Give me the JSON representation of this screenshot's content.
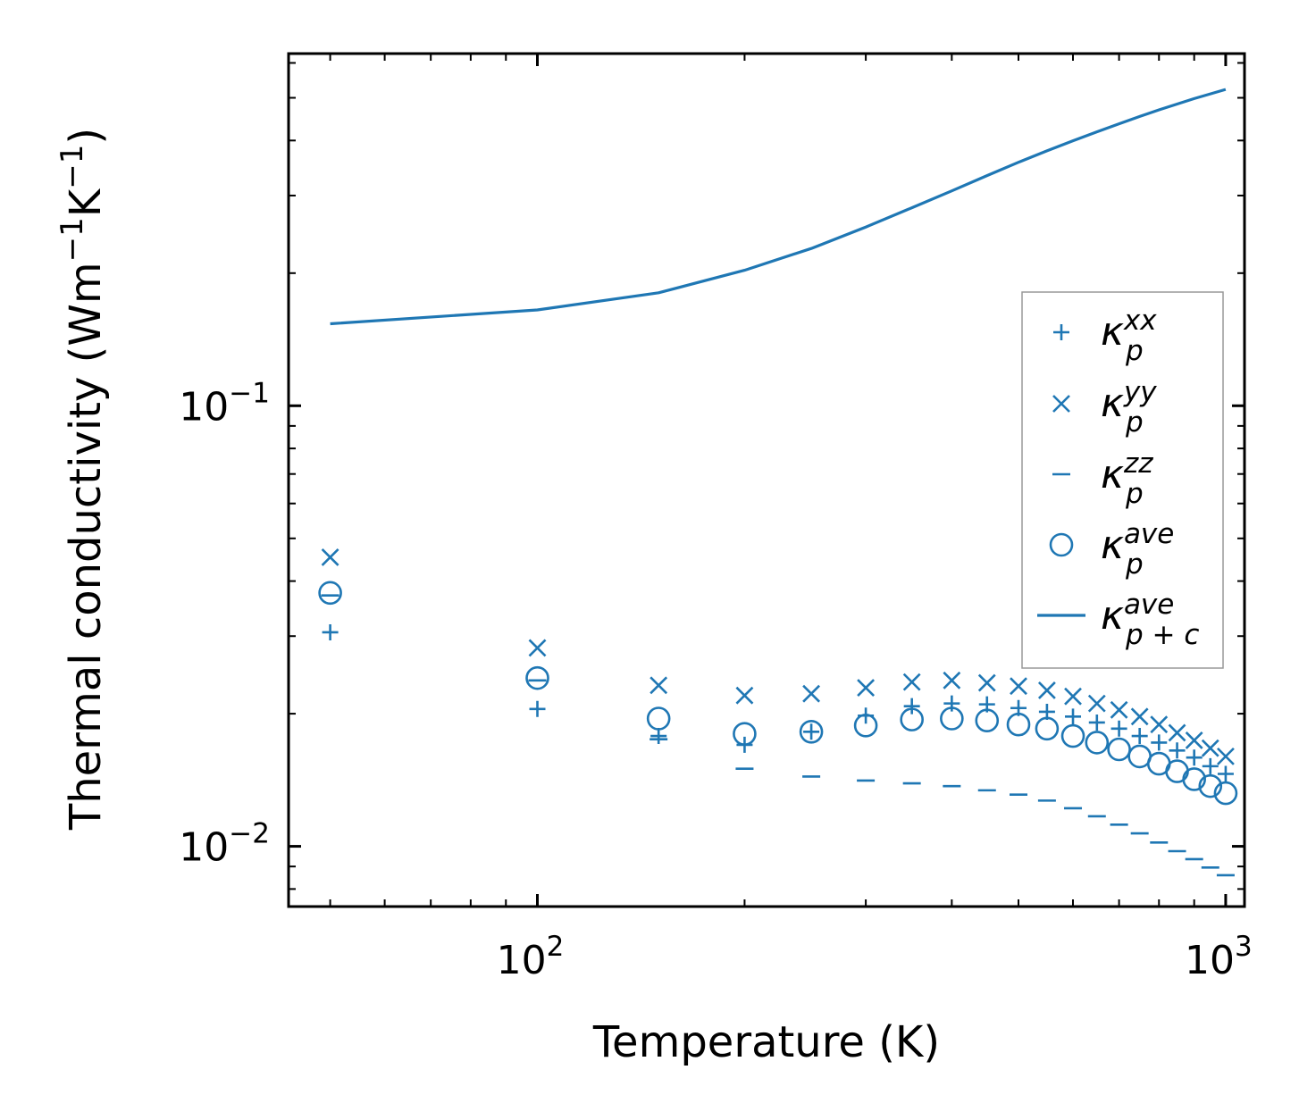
{
  "chart_data": {
    "type": "scatter",
    "title": "",
    "xlabel": "Temperature (K)",
    "ylabel": {
      "prefix": "Thermal conductivity (Wm",
      "exp1": "−1",
      "mid": "K",
      "exp2": "−1",
      "suffix": ")"
    },
    "xscale": "log",
    "yscale": "log",
    "xlim": [
      43.5,
      1065
    ],
    "ylim": [
      0.0073,
      0.63
    ],
    "x_ticks": [
      {
        "value": 100,
        "base": "10",
        "exp": "2"
      },
      {
        "value": 1000,
        "base": "10",
        "exp": "3"
      }
    ],
    "y_ticks": [
      {
        "value": 0.01,
        "base": "10",
        "exp": "−2"
      },
      {
        "value": 0.1,
        "base": "10",
        "exp": "−1"
      }
    ],
    "grid": false,
    "legend_position": "center-right",
    "color": "#1f77b4",
    "x": [
      50,
      100,
      150,
      200,
      250,
      300,
      350,
      400,
      450,
      500,
      550,
      600,
      650,
      700,
      750,
      800,
      850,
      900,
      950,
      1000
    ],
    "series": [
      {
        "name": "kappa_p^xx",
        "label": {
          "base": "κ",
          "sub": "p",
          "sup": "xx"
        },
        "marker": "plus",
        "values": [
          0.0306,
          0.0205,
          0.0178,
          0.017,
          0.0182,
          0.0198,
          0.0208,
          0.0211,
          0.021,
          0.0206,
          0.0202,
          0.0197,
          0.0191,
          0.0185,
          0.0178,
          0.0172,
          0.0165,
          0.0159,
          0.0152,
          0.0146
        ]
      },
      {
        "name": "kappa_p^yy",
        "label": {
          "base": "κ",
          "sub": "p",
          "sup": "yy"
        },
        "marker": "x",
        "values": [
          0.0453,
          0.0282,
          0.0232,
          0.022,
          0.0222,
          0.0229,
          0.0236,
          0.0238,
          0.0235,
          0.0231,
          0.0226,
          0.0219,
          0.0211,
          0.0204,
          0.0197,
          0.0189,
          0.0181,
          0.0174,
          0.0167,
          0.016
        ]
      },
      {
        "name": "kappa_p^zz",
        "label": {
          "base": "κ",
          "sub": "p",
          "sup": "zz"
        },
        "marker": "hline",
        "values": [
          0.0371,
          0.0238,
          0.0175,
          0.015,
          0.0144,
          0.0141,
          0.0139,
          0.0137,
          0.0134,
          0.0131,
          0.0127,
          0.0122,
          0.0117,
          0.0112,
          0.0107,
          0.0102,
          0.00975,
          0.00935,
          0.00895,
          0.0086
        ]
      },
      {
        "name": "kappa_p^ave",
        "label": {
          "base": "κ",
          "sub": "p",
          "sup": "ave"
        },
        "marker": "circle",
        "values": [
          0.0376,
          0.0241,
          0.0195,
          0.018,
          0.0182,
          0.0188,
          0.0194,
          0.0195,
          0.0193,
          0.0189,
          0.0185,
          0.0178,
          0.0172,
          0.0166,
          0.016,
          0.0154,
          0.0148,
          0.0142,
          0.0137,
          0.0132
        ]
      },
      {
        "name": "kappa_p+c^ave",
        "label": {
          "base": "κ",
          "sub": "p + c",
          "sup": "ave"
        },
        "marker": "line",
        "values": [
          0.1535,
          0.165,
          0.1805,
          0.203,
          0.2275,
          0.2545,
          0.2815,
          0.3075,
          0.333,
          0.357,
          0.379,
          0.3995,
          0.4185,
          0.4365,
          0.4535,
          0.4695,
          0.484,
          0.498,
          0.5105,
          0.5225
        ]
      }
    ]
  }
}
